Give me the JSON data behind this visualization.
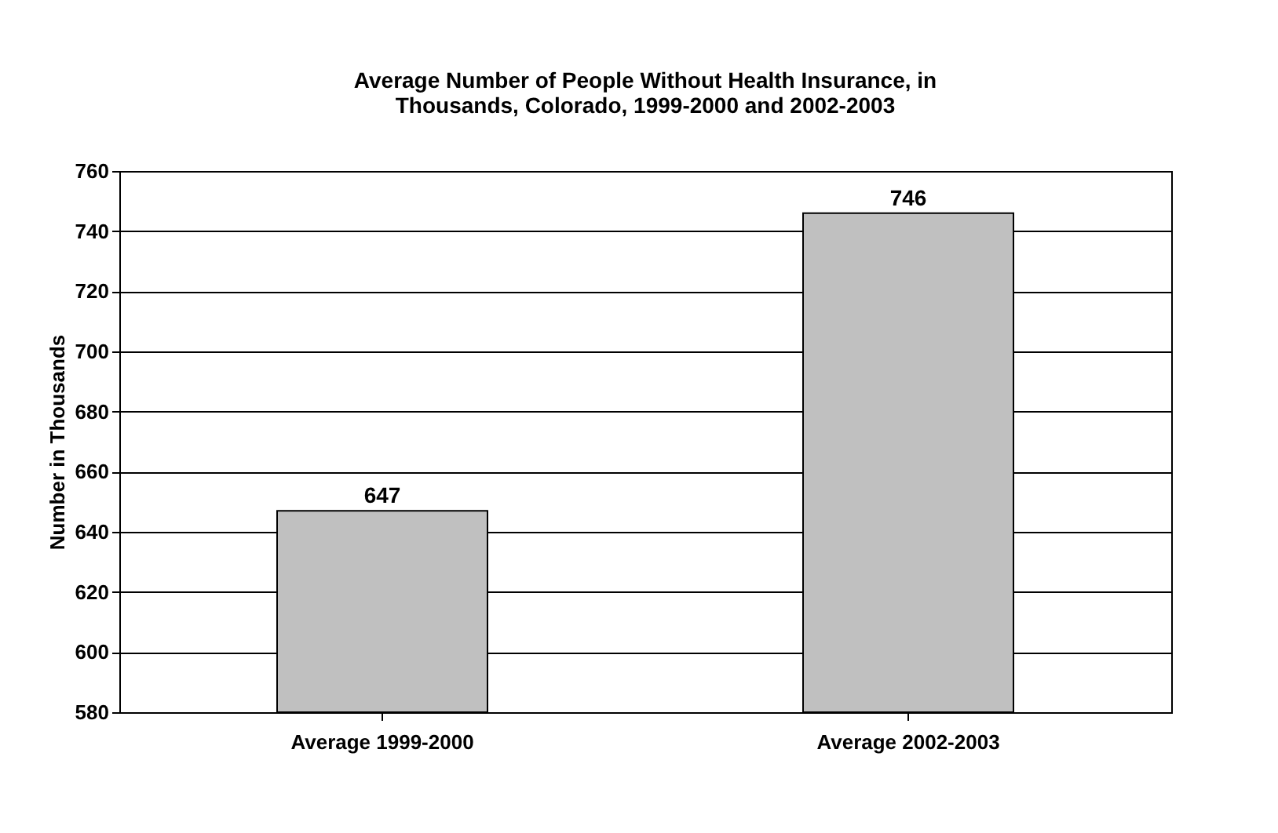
{
  "chart_data": {
    "type": "bar",
    "title": "Average Number of People Without Health Insurance, in\nThousands, Colorado, 1999-2000 and 2002-2003",
    "ylabel": "Number in Thousands",
    "categories": [
      "Average 1999-2000",
      "Average 2002-2003"
    ],
    "values": [
      647,
      746
    ],
    "color": "#c0c0c0",
    "ylim": [
      580,
      760
    ],
    "yticks": [
      580,
      600,
      620,
      640,
      660,
      680,
      700,
      720,
      740,
      760
    ],
    "grid": "y",
    "data_labels": true
  }
}
